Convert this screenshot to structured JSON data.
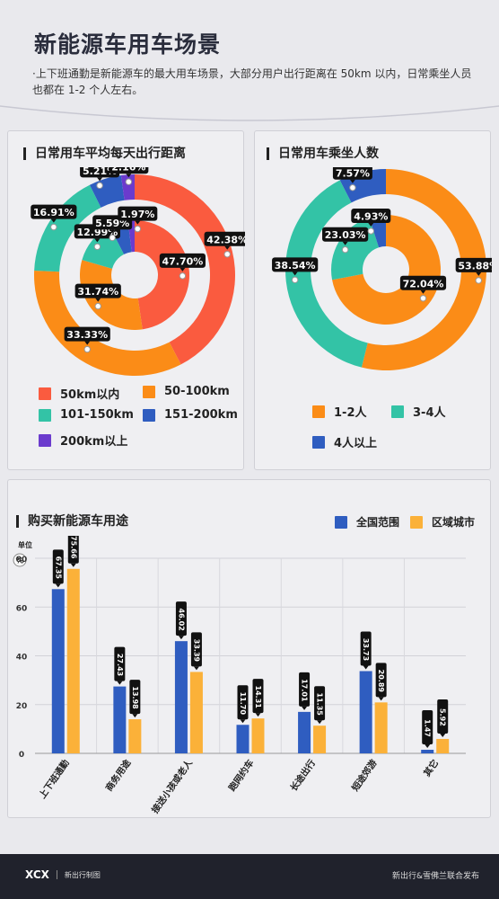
{
  "header": {
    "title": "新能源车用车场景",
    "intro": "上下班通勤是新能源车的最大用车场景，大部分用户出行距离在 50km 以内，日常乘坐人员也都在 1-2 个人左右。"
  },
  "colors": {
    "red": "#fa5b3f",
    "orange": "#fb8c17",
    "teal": "#33c3a6",
    "blue": "#2f5dc0",
    "purple": "#6b3bcd",
    "bar_blue": "#2f5dc0",
    "bar_yellow": "#fbb139"
  },
  "chart_data": [
    {
      "type": "pie",
      "title": "日常用车平均每天出行距离",
      "categories": [
        "50km以内",
        "50-100km",
        "101-150km",
        "151-200km",
        "200km以上"
      ],
      "series": [
        {
          "values": [
            42.38,
            33.33,
            16.91,
            5.21,
            2.16
          ]
        },
        {
          "values": [
            47.7,
            31.74,
            12.99,
            5.59,
            1.97
          ]
        }
      ],
      "labels": {
        "outer": [
          "42.38%",
          "33.33%",
          "16.91%",
          "5.21%",
          "2.16%"
        ],
        "inner": [
          "47.70%",
          "31.74%",
          "12.99%",
          "5.59%",
          "1.97%"
        ]
      }
    },
    {
      "type": "pie",
      "title": "日常用车乘坐人数",
      "categories": [
        "1-2人",
        "3-4人",
        "4人以上"
      ],
      "series": [
        {
          "values": [
            53.88,
            38.54,
            7.57
          ]
        },
        {
          "values": [
            72.04,
            23.03,
            4.93
          ]
        }
      ],
      "labels": {
        "outer": [
          "53.88%",
          "38.54%",
          "7.57%"
        ],
        "inner": [
          "72.04%",
          "23.03%",
          "4.93%"
        ]
      }
    },
    {
      "type": "bar",
      "title": "购买新能源车用途",
      "unit_label": "单位",
      "unit_symbol": "%",
      "categories": [
        "上下班通勤",
        "商务用途",
        "接送小孩或老人",
        "跑网约车",
        "长途出行",
        "短途郊游",
        "其它"
      ],
      "series": [
        {
          "name": "全国范围",
          "values": [
            67.35,
            27.43,
            46.02,
            11.7,
            17.01,
            33.73,
            1.47
          ]
        },
        {
          "name": "区域城市",
          "values": [
            75.66,
            13.98,
            33.39,
            14.31,
            11.35,
            20.89,
            5.92
          ]
        }
      ],
      "value_labels": [
        [
          "67.35",
          "27.43",
          "46.02",
          "11.70",
          "17.01",
          "33.73",
          "1.47"
        ],
        [
          "75.66",
          "13.98",
          "33.39",
          "14.31",
          "11.35",
          "20.89",
          "5.92"
        ]
      ],
      "ylim": [
        0,
        80
      ],
      "yticks": [
        "0",
        "20",
        "40",
        "60",
        "80"
      ],
      "grid": true,
      "legend": "top-right"
    }
  ],
  "footer": {
    "logo": "XCX",
    "logo_sub": "新出行制图",
    "credit": "新出行&雪佛兰联合发布"
  }
}
